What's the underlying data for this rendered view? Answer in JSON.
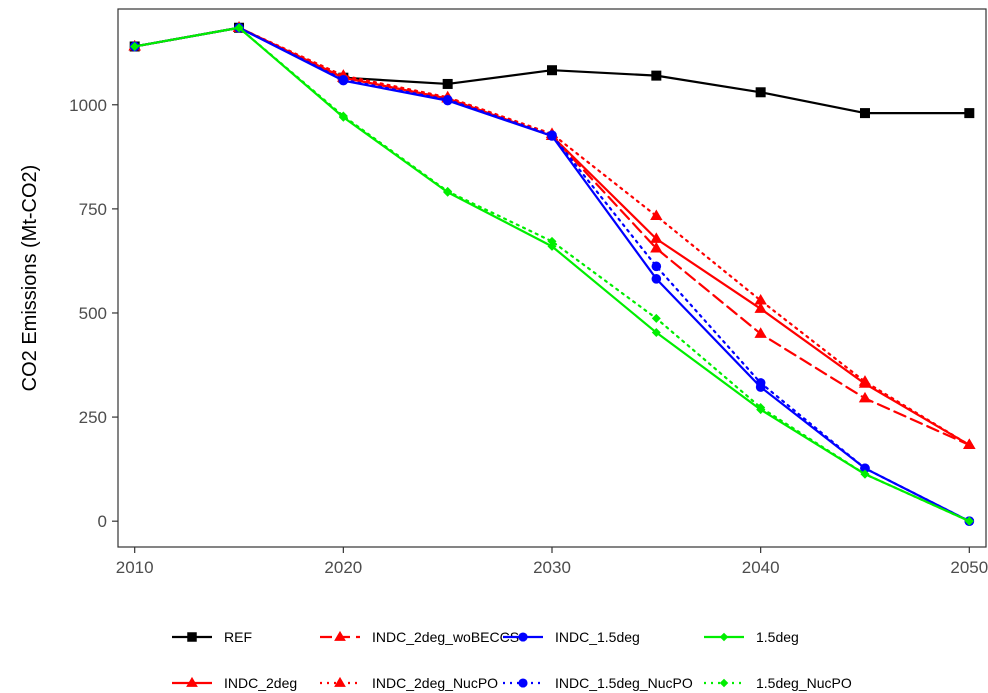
{
  "chart_data": {
    "type": "line",
    "title": "",
    "xlabel": "",
    "ylabel": "CO2 Emissions (Mt-CO2)",
    "x": [
      2010,
      2015,
      2020,
      2025,
      2030,
      2035,
      2040,
      2045,
      2050
    ],
    "x_ticks": [
      "2010",
      "2020",
      "2030",
      "2040",
      "2050"
    ],
    "y_ticks": [
      "0",
      "250",
      "500",
      "750",
      "1000"
    ],
    "xlim": [
      2009.2,
      2050.8
    ],
    "ylim": [
      -62,
      1230
    ],
    "grid": false,
    "legend_position": "bottom",
    "series": [
      {
        "name": "REF",
        "color": "#000000",
        "linestyle": "solid",
        "marker": "square",
        "values": [
          1140,
          1185,
          1065,
          1050,
          1083,
          1070,
          1030,
          980,
          980
        ]
      },
      {
        "name": "INDC_2deg",
        "color": "#ff0000",
        "linestyle": "solid",
        "marker": "triangle",
        "values": [
          1140,
          1185,
          1065,
          1015,
          925,
          678,
          510,
          330,
          183
        ]
      },
      {
        "name": "INDC_2deg_woBECCS",
        "color": "#ff0000",
        "linestyle": "dashed",
        "marker": "triangle",
        "values": [
          1140,
          1185,
          1065,
          1015,
          925,
          655,
          450,
          295,
          183
        ]
      },
      {
        "name": "INDC_2deg_NucPO",
        "color": "#ff0000",
        "linestyle": "dotted",
        "marker": "triangle",
        "values": [
          1140,
          1185,
          1070,
          1018,
          930,
          733,
          530,
          335,
          183
        ]
      },
      {
        "name": "INDC_1.5deg",
        "color": "#0000ff",
        "linestyle": "solid",
        "marker": "circle",
        "values": [
          1140,
          1185,
          1058,
          1010,
          925,
          582,
          322,
          127,
          0
        ]
      },
      {
        "name": "INDC_1.5deg_NucPO",
        "color": "#0000ff",
        "linestyle": "dotted",
        "marker": "circle",
        "values": [
          1140,
          1185,
          1060,
          1012,
          927,
          612,
          332,
          127,
          0
        ]
      },
      {
        "name": "1.5deg",
        "color": "#00ee00",
        "linestyle": "solid",
        "marker": "diamond",
        "values": [
          1140,
          1185,
          970,
          790,
          660,
          453,
          268,
          113,
          0
        ]
      },
      {
        "name": "1.5deg_NucPO",
        "color": "#00ee00",
        "linestyle": "dotted",
        "marker": "diamond",
        "values": [
          1140,
          1185,
          973,
          792,
          672,
          487,
          273,
          113,
          0
        ]
      }
    ]
  }
}
